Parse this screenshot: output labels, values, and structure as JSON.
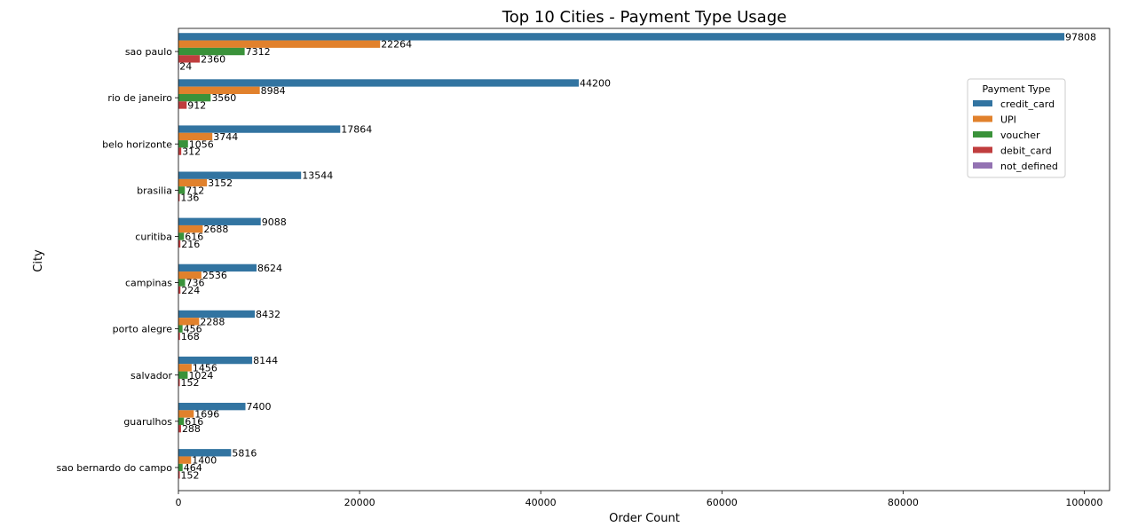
{
  "chart_data": {
    "type": "bar",
    "orientation": "horizontal",
    "title": "Top 10 Cities - Payment Type Usage",
    "xlabel": "Order Count",
    "ylabel": "City",
    "xlim": [
      0,
      102800
    ],
    "xticks": [
      0,
      20000,
      40000,
      60000,
      80000,
      100000
    ],
    "grid": false,
    "legend_title": "Payment Type",
    "legend_position": "right",
    "categories": [
      "sao paulo",
      "rio de janeiro",
      "belo horizonte",
      "brasilia",
      "curitiba",
      "campinas",
      "porto alegre",
      "salvador",
      "guarulhos",
      "sao bernardo do campo"
    ],
    "series": [
      {
        "name": "credit_card",
        "color": "#3274a1",
        "values": [
          97808,
          44200,
          17864,
          13544,
          9088,
          8624,
          8432,
          8144,
          7400,
          5816
        ]
      },
      {
        "name": "UPI",
        "color": "#e1812c",
        "values": [
          22264,
          8984,
          3744,
          3152,
          2688,
          2536,
          2288,
          1456,
          1696,
          1400
        ]
      },
      {
        "name": "voucher",
        "color": "#3a923a",
        "values": [
          7312,
          3560,
          1056,
          712,
          616,
          736,
          456,
          1024,
          616,
          464
        ]
      },
      {
        "name": "debit_card",
        "color": "#c03d3e",
        "values": [
          2360,
          912,
          312,
          136,
          216,
          224,
          168,
          152,
          288,
          152
        ]
      },
      {
        "name": "not_defined",
        "color": "#9372b2",
        "values": [
          24,
          null,
          null,
          null,
          null,
          null,
          null,
          null,
          null,
          null
        ]
      }
    ]
  }
}
